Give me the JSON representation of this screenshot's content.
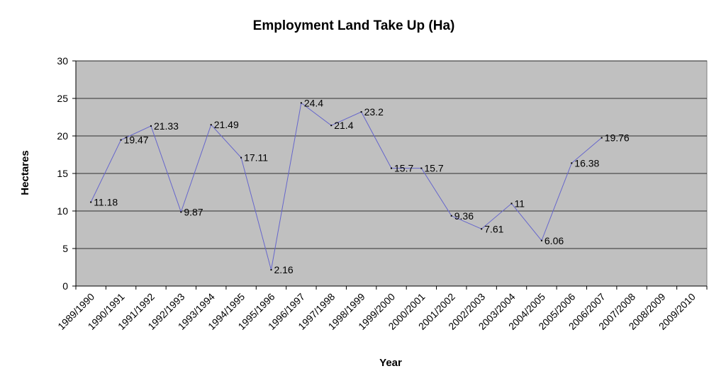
{
  "chart_data": {
    "type": "line",
    "title": "Employment Land Take Up (Ha)",
    "xlabel": "Year",
    "ylabel": "Hectares",
    "ylim": [
      0,
      30
    ],
    "yticks": [
      "0",
      "5",
      "10",
      "15",
      "20",
      "25",
      "30"
    ],
    "grid": true,
    "legend": "none",
    "categories": [
      "1989/1990",
      "1990/1991",
      "1991/1992",
      "1992/1993",
      "1993/1994",
      "1994/1995",
      "1995/1996",
      "1996/1997",
      "1997/1998",
      "1998/1999",
      "1999/2000",
      "2000/2001",
      "2001/2002",
      "2002/2003",
      "2003/2004",
      "2004/2005",
      "2005/2006",
      "2006/2007",
      "2007/2008",
      "2008/2009",
      "2009/2010"
    ],
    "series": [
      {
        "values": [
          11.18,
          19.47,
          21.33,
          9.87,
          21.49,
          17.11,
          2.16,
          24.4,
          21.4,
          23.2,
          15.7,
          15.7,
          9.36,
          7.61,
          11,
          6.06,
          16.38,
          19.76,
          null,
          null,
          null
        ],
        "data_labels": [
          "11.18",
          "19.47",
          "21.33",
          "9.87",
          "21.49",
          "17.11",
          "2.16",
          "24.4",
          "21.4",
          "23.2",
          "15.7",
          "15.7",
          "9.36",
          "7.61",
          "11",
          "6.06",
          "16.38",
          "19.76",
          null,
          null,
          null
        ],
        "color": "#6666cc"
      }
    ],
    "colors": {
      "plot_bg": "#c0c0c0",
      "gridline": "#000000",
      "line": "#6666cc"
    }
  }
}
